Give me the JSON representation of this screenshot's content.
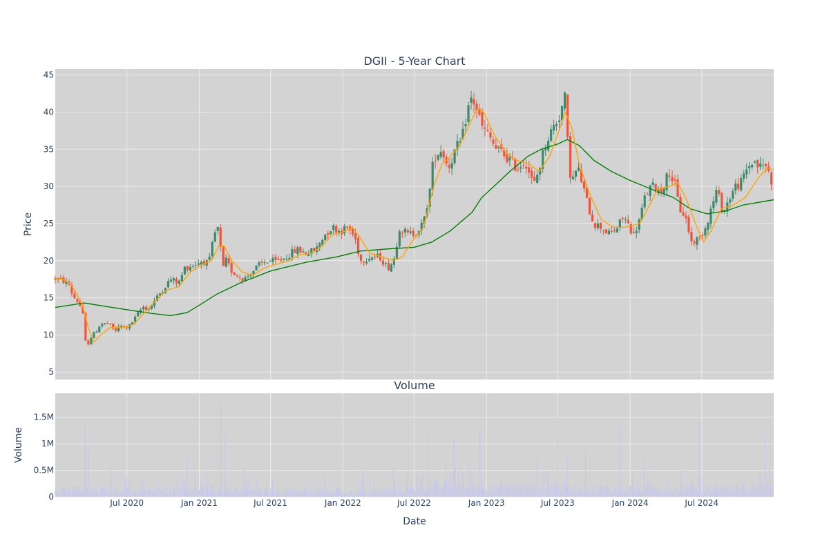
{
  "colors": {
    "plot_bg": "#d3d3d3",
    "grid": "#ebebeb",
    "text": "#2a3f5f",
    "up": "#3d8a6b",
    "down": "#ef553b",
    "ma_short": "#ffa500",
    "ma_long": "#008000",
    "volume": "#c8c8ec"
  },
  "chart_data": [
    {
      "type": "candlestick",
      "title": "DGII - 5-Year Chart",
      "ylabel": "Price",
      "xlabel": "",
      "grid": true,
      "ylim": [
        4,
        45.8
      ],
      "xlim": [
        "2020-01-01",
        "2024-12-31"
      ],
      "yticks": [
        5,
        10,
        15,
        20,
        25,
        30,
        35,
        40,
        45
      ],
      "xticks": [
        "2020-07-01",
        "2021-01-01",
        "2021-07-01",
        "2022-01-01",
        "2022-07-01",
        "2023-01-01",
        "2023-07-01",
        "2024-01-01",
        "2024-07-01"
      ],
      "price_path": [
        [
          "2020-01-01",
          17.6
        ],
        [
          "2020-01-20",
          17.3
        ],
        [
          "2020-02-05",
          16.8
        ],
        [
          "2020-02-15",
          15.2
        ],
        [
          "2020-02-28",
          14.5
        ],
        [
          "2020-03-10",
          13.2
        ],
        [
          "2020-03-20",
          8.0
        ],
        [
          "2020-03-28",
          9.5
        ],
        [
          "2020-04-10",
          10.2
        ],
        [
          "2020-04-25",
          11.5
        ],
        [
          "2020-05-15",
          11.5
        ],
        [
          "2020-06-01",
          10.5
        ],
        [
          "2020-06-15",
          11.2
        ],
        [
          "2020-07-05",
          11.0
        ],
        [
          "2020-07-25",
          12.5
        ],
        [
          "2020-08-10",
          13.8
        ],
        [
          "2020-08-25",
          13.5
        ],
        [
          "2020-09-15",
          15.0
        ],
        [
          "2020-10-05",
          16.5
        ],
        [
          "2020-10-20",
          17.5
        ],
        [
          "2020-11-10",
          17.0
        ],
        [
          "2020-11-25",
          19.0
        ],
        [
          "2020-12-20",
          19.5
        ],
        [
          "2021-01-10",
          20.0
        ],
        [
          "2021-01-25",
          19.5
        ],
        [
          "2021-02-08",
          23.5
        ],
        [
          "2021-02-20",
          24.5
        ],
        [
          "2021-02-28",
          18.5
        ],
        [
          "2021-03-10",
          20.0
        ],
        [
          "2021-03-25",
          18.5
        ],
        [
          "2021-04-10",
          18.0
        ],
        [
          "2021-04-25",
          17.5
        ],
        [
          "2021-05-15",
          18.5
        ],
        [
          "2021-06-05",
          19.5
        ],
        [
          "2021-06-25",
          20.0
        ],
        [
          "2021-07-15",
          19.8
        ],
        [
          "2021-08-10",
          20.5
        ],
        [
          "2021-09-05",
          21.5
        ],
        [
          "2021-10-01",
          21.0
        ],
        [
          "2021-10-25",
          21.5
        ],
        [
          "2021-11-15",
          23.5
        ],
        [
          "2021-12-05",
          24.5
        ],
        [
          "2021-12-25",
          24.0
        ],
        [
          "2022-01-15",
          24.5
        ],
        [
          "2022-02-01",
          23.0
        ],
        [
          "2022-02-15",
          20.0
        ],
        [
          "2022-03-10",
          20.5
        ],
        [
          "2022-04-05",
          20.5
        ],
        [
          "2022-04-25",
          19.0
        ],
        [
          "2022-05-10",
          20.0
        ],
        [
          "2022-05-25",
          24.5
        ],
        [
          "2022-06-15",
          23.5
        ],
        [
          "2022-07-05",
          23.8
        ],
        [
          "2022-07-25",
          25.0
        ],
        [
          "2022-08-10",
          29.5
        ],
        [
          "2022-08-20",
          34.0
        ],
        [
          "2022-09-10",
          35.0
        ],
        [
          "2022-09-25",
          32.5
        ],
        [
          "2022-10-15",
          35.0
        ],
        [
          "2022-10-30",
          36.0
        ],
        [
          "2022-11-12",
          40.0
        ],
        [
          "2022-11-25",
          42.0
        ],
        [
          "2022-12-10",
          40.0
        ],
        [
          "2022-12-20",
          38.0
        ],
        [
          "2023-01-10",
          36.5
        ],
        [
          "2023-01-25",
          35.0
        ],
        [
          "2023-02-10",
          34.5
        ],
        [
          "2023-03-01",
          33.5
        ],
        [
          "2023-03-20",
          32.5
        ],
        [
          "2023-04-10",
          33.5
        ],
        [
          "2023-05-01",
          30.0
        ],
        [
          "2023-05-15",
          32.5
        ],
        [
          "2023-06-01",
          36.0
        ],
        [
          "2023-06-20",
          38.0
        ],
        [
          "2023-07-05",
          39.5
        ],
        [
          "2023-07-20",
          42.0
        ],
        [
          "2023-07-28",
          34.0
        ],
        [
          "2023-08-05",
          30.5
        ],
        [
          "2023-08-20",
          32.5
        ],
        [
          "2023-09-01",
          30.5
        ],
        [
          "2023-09-15",
          27.5
        ],
        [
          "2023-10-01",
          25.0
        ],
        [
          "2023-10-20",
          24.5
        ],
        [
          "2023-11-10",
          23.5
        ],
        [
          "2023-12-01",
          24.5
        ],
        [
          "2023-12-15",
          26.0
        ],
        [
          "2024-01-10",
          23.5
        ],
        [
          "2024-01-25",
          25.5
        ],
        [
          "2024-02-10",
          29.0
        ],
        [
          "2024-02-25",
          30.0
        ],
        [
          "2024-03-20",
          29.5
        ],
        [
          "2024-04-10",
          32.0
        ],
        [
          "2024-04-25",
          30.0
        ],
        [
          "2024-05-05",
          27.0
        ],
        [
          "2024-05-20",
          26.0
        ],
        [
          "2024-06-05",
          22.5
        ],
        [
          "2024-06-25",
          23.0
        ],
        [
          "2024-07-10",
          24.5
        ],
        [
          "2024-07-25",
          27.0
        ],
        [
          "2024-08-08",
          29.5
        ],
        [
          "2024-08-25",
          26.5
        ],
        [
          "2024-09-10",
          28.5
        ],
        [
          "2024-09-25",
          30.0
        ],
        [
          "2024-10-10",
          30.5
        ],
        [
          "2024-10-25",
          32.5
        ],
        [
          "2024-11-10",
          33.5
        ],
        [
          "2024-11-25",
          32.5
        ],
        [
          "2024-12-10",
          33.0
        ],
        [
          "2024-12-31",
          30.0
        ]
      ],
      "sma_short": [
        [
          "2020-01-01",
          17.5
        ],
        [
          "2020-01-20",
          17.5
        ],
        [
          "2020-02-05",
          17.0
        ],
        [
          "2020-02-20",
          16.0
        ],
        [
          "2020-03-10",
          14.0
        ],
        [
          "2020-03-25",
          11.0
        ],
        [
          "2020-04-08",
          9.0
        ],
        [
          "2020-04-25",
          10.0
        ],
        [
          "2020-05-20",
          11.0
        ],
        [
          "2020-06-10",
          11.0
        ],
        [
          "2020-07-01",
          11.0
        ],
        [
          "2020-07-20",
          11.5
        ],
        [
          "2020-08-15",
          13.0
        ],
        [
          "2020-09-10",
          14.5
        ],
        [
          "2020-10-10",
          16.0
        ],
        [
          "2020-11-10",
          16.5
        ],
        [
          "2020-12-10",
          18.5
        ],
        [
          "2021-01-10",
          19.5
        ],
        [
          "2021-02-01",
          20.0
        ],
        [
          "2021-02-20",
          22.0
        ],
        [
          "2021-03-05",
          22.0
        ],
        [
          "2021-03-25",
          20.0
        ],
        [
          "2021-04-20",
          18.5
        ],
        [
          "2021-05-15",
          18.0
        ],
        [
          "2021-06-15",
          19.0
        ],
        [
          "2021-07-15",
          19.5
        ],
        [
          "2021-08-15",
          20.0
        ],
        [
          "2021-09-15",
          20.8
        ],
        [
          "2021-10-15",
          21.0
        ],
        [
          "2021-11-10",
          22.0
        ],
        [
          "2021-12-05",
          23.5
        ],
        [
          "2022-01-10",
          24.0
        ],
        [
          "2022-01-25",
          24.5
        ],
        [
          "2022-02-15",
          23.0
        ],
        [
          "2022-03-10",
          21.0
        ],
        [
          "2022-04-10",
          20.5
        ],
        [
          "2022-05-10",
          20.0
        ],
        [
          "2022-06-01",
          20.5
        ],
        [
          "2022-06-25",
          22.5
        ],
        [
          "2022-07-25",
          24.5
        ],
        [
          "2022-08-20",
          30.0
        ],
        [
          "2022-09-10",
          33.0
        ],
        [
          "2022-10-01",
          34.0
        ],
        [
          "2022-10-25",
          35.5
        ],
        [
          "2022-11-20",
          38.5
        ],
        [
          "2022-12-10",
          40.5
        ],
        [
          "2022-12-25",
          40.0
        ],
        [
          "2023-01-20",
          37.0
        ],
        [
          "2023-02-20",
          34.5
        ],
        [
          "2023-03-20",
          33.5
        ],
        [
          "2023-04-20",
          33.0
        ],
        [
          "2023-05-15",
          32.0
        ],
        [
          "2023-06-10",
          34.0
        ],
        [
          "2023-07-01",
          37.0
        ],
        [
          "2023-07-20",
          40.0
        ],
        [
          "2023-08-05",
          38.0
        ],
        [
          "2023-08-25",
          33.0
        ],
        [
          "2023-09-20",
          29.0
        ],
        [
          "2023-10-20",
          25.5
        ],
        [
          "2023-11-20",
          24.5
        ],
        [
          "2023-12-20",
          24.5
        ],
        [
          "2024-01-25",
          25.0
        ],
        [
          "2024-02-20",
          27.5
        ],
        [
          "2024-03-10",
          29.5
        ],
        [
          "2024-04-10",
          30.0
        ],
        [
          "2024-05-01",
          30.5
        ],
        [
          "2024-05-25",
          28.0
        ],
        [
          "2024-06-15",
          25.0
        ],
        [
          "2024-07-05",
          22.5
        ],
        [
          "2024-07-25",
          24.0
        ],
        [
          "2024-08-20",
          27.0
        ],
        [
          "2024-09-20",
          27.5
        ],
        [
          "2024-10-20",
          28.5
        ],
        [
          "2024-11-20",
          31.0
        ],
        [
          "2024-12-15",
          32.5
        ],
        [
          "2024-12-31",
          32.2
        ]
      ],
      "sma_long": [
        [
          "2020-01-01",
          13.7
        ],
        [
          "2020-03-15",
          14.3
        ],
        [
          "2020-05-01",
          13.9
        ],
        [
          "2020-07-01",
          13.4
        ],
        [
          "2020-09-01",
          12.9
        ],
        [
          "2020-10-20",
          12.6
        ],
        [
          "2020-12-01",
          13.0
        ],
        [
          "2021-01-01",
          14.0
        ],
        [
          "2021-02-15",
          15.5
        ],
        [
          "2021-04-15",
          17.0
        ],
        [
          "2021-07-01",
          18.6
        ],
        [
          "2021-10-01",
          19.8
        ],
        [
          "2021-12-15",
          20.5
        ],
        [
          "2022-02-15",
          21.3
        ],
        [
          "2022-05-01",
          21.6
        ],
        [
          "2022-07-01",
          21.8
        ],
        [
          "2022-08-15",
          22.5
        ],
        [
          "2022-10-01",
          24.0
        ],
        [
          "2022-11-25",
          26.5
        ],
        [
          "2022-12-20",
          28.5
        ],
        [
          "2023-01-20",
          30.0
        ],
        [
          "2023-03-01",
          32.0
        ],
        [
          "2023-04-15",
          34.0
        ],
        [
          "2023-05-20",
          35.0
        ],
        [
          "2023-07-01",
          35.7
        ],
        [
          "2023-07-25",
          36.3
        ],
        [
          "2023-08-25",
          35.5
        ],
        [
          "2023-10-01",
          33.5
        ],
        [
          "2023-11-15",
          32.0
        ],
        [
          "2024-01-01",
          30.8
        ],
        [
          "2024-03-01",
          29.5
        ],
        [
          "2024-04-20",
          28.5
        ],
        [
          "2024-06-01",
          27.0
        ],
        [
          "2024-07-15",
          26.3
        ],
        [
          "2024-09-01",
          26.7
        ],
        [
          "2024-10-15",
          27.5
        ],
        [
          "2024-12-31",
          28.2
        ]
      ]
    },
    {
      "type": "bar",
      "title": "Volume",
      "ylabel": "Volume",
      "xlabel": "Date",
      "grid": true,
      "ylim": [
        0,
        1950000
      ],
      "yticks": [
        0,
        500000,
        1000000,
        1500000
      ],
      "ytick_labels": [
        "0",
        "0.5M",
        "1M",
        "1.5M"
      ],
      "xticks": [
        "2020-07-01",
        "2021-01-01",
        "2021-07-01",
        "2022-01-01",
        "2022-07-01",
        "2023-01-01",
        "2023-07-01",
        "2024-01-01",
        "2024-07-01"
      ],
      "xtick_labels": [
        "Jul 2020",
        "Jan 2021",
        "Jul 2021",
        "Jan 2022",
        "Jul 2022",
        "Jan 2023",
        "Jul 2023",
        "Jan 2024",
        "Jul 2024"
      ],
      "baseline_segments": [
        [
          "2020-01-01",
          180000
        ],
        [
          "2020-09-01",
          140000
        ],
        [
          "2021-01-01",
          200000
        ],
        [
          "2021-04-01",
          150000
        ],
        [
          "2021-10-01",
          130000
        ],
        [
          "2022-04-01",
          130000
        ],
        [
          "2022-07-01",
          200000
        ],
        [
          "2022-10-01",
          260000
        ],
        [
          "2023-01-01",
          230000
        ],
        [
          "2023-07-01",
          230000
        ],
        [
          "2024-01-01",
          190000
        ],
        [
          "2024-07-01",
          190000
        ],
        [
          "2024-12-31",
          230000
        ]
      ],
      "spikes": [
        [
          "2020-03-17",
          1330000
        ],
        [
          "2020-03-25",
          980000
        ],
        [
          "2020-05-20",
          560000
        ],
        [
          "2020-06-30",
          380000
        ],
        [
          "2020-12-01",
          800000
        ],
        [
          "2021-01-20",
          710000
        ],
        [
          "2021-02-25",
          1780000
        ],
        [
          "2021-03-08",
          1150000
        ],
        [
          "2021-04-25",
          540000
        ],
        [
          "2021-11-15",
          410000
        ],
        [
          "2022-02-20",
          520000
        ],
        [
          "2022-05-10",
          560000
        ],
        [
          "2022-08-05",
          1150000
        ],
        [
          "2022-09-20",
          730000
        ],
        [
          "2022-10-10",
          1150000
        ],
        [
          "2022-11-15",
          680000
        ],
        [
          "2022-12-15",
          1230000
        ],
        [
          "2023-05-10",
          800000
        ],
        [
          "2023-07-01",
          1500000
        ],
        [
          "2023-07-25",
          830000
        ],
        [
          "2023-09-10",
          840000
        ],
        [
          "2023-12-05",
          1320000
        ],
        [
          "2024-02-05",
          720000
        ],
        [
          "2024-05-10",
          500000
        ],
        [
          "2024-06-25",
          1420000
        ],
        [
          "2024-12-10",
          1200000
        ]
      ]
    }
  ]
}
